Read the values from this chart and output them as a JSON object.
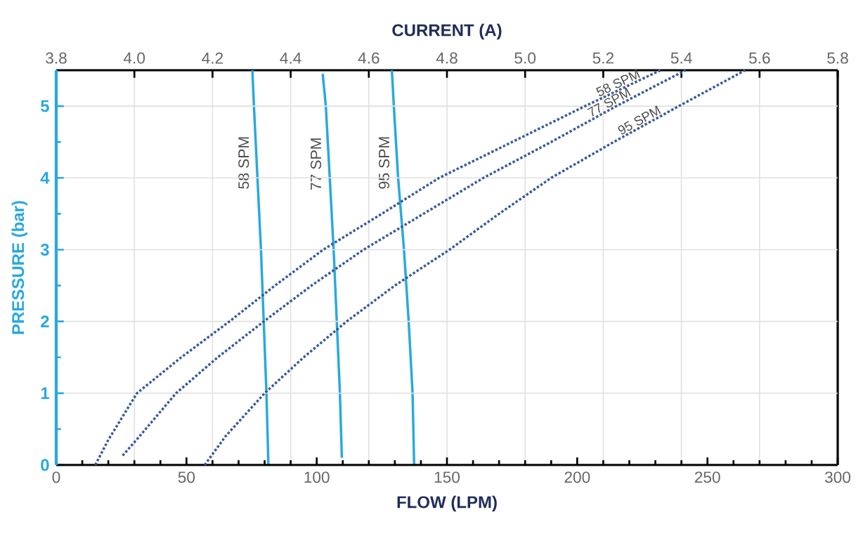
{
  "chart_data": {
    "type": "line",
    "xlabel": "FLOW (LPM)",
    "ylabel": "PRESSURE (bar)",
    "x2label": "CURRENT (A)",
    "xlim": [
      0,
      300
    ],
    "xticks": [
      0,
      50,
      100,
      150,
      200,
      250,
      300
    ],
    "x2lim": [
      3.8,
      5.8
    ],
    "x2ticks": [
      3.8,
      {
        "value": 4,
        "label": "4.0"
      },
      4.2,
      4.4,
      4.6,
      4.8,
      {
        "value": 5,
        "label": "5.0"
      },
      5.2,
      5.4,
      5.6,
      5.8
    ],
    "ylim": [
      0,
      5.5
    ],
    "yticks": [
      0,
      1,
      2,
      3,
      4,
      5
    ],
    "grid": true,
    "marker": "none",
    "series": [
      {
        "name": "58 SPM",
        "axis": "x2",
        "color": "#29a8e0",
        "line_style": "solid",
        "x": [
          4.343,
          4.338,
          4.331,
          4.324,
          4.315,
          4.306,
          4.302
        ],
        "values": [
          0,
          1,
          2,
          3,
          4,
          5,
          5.5
        ]
      },
      {
        "name": "77 SPM",
        "axis": "x2",
        "color": "#29a8e0",
        "line_style": "solid",
        "x": [
          4.531,
          4.526,
          4.518,
          4.51,
          4.5,
          4.49,
          4.482
        ],
        "values": [
          0.1,
          1,
          2,
          3,
          4,
          5,
          5.45
        ]
      },
      {
        "name": "95 SPM",
        "axis": "x2",
        "color": "#29a8e0",
        "line_style": "solid",
        "x": [
          4.716,
          4.712,
          4.702,
          4.69,
          4.675,
          4.664,
          4.659
        ],
        "values": [
          0,
          1,
          2,
          3,
          4,
          5,
          5.5
        ]
      },
      {
        "name": "58 SPM",
        "color": "#3a5a9a",
        "line_style": "dotted",
        "x": [
          15,
          20,
          31,
          48,
          66.5,
          84,
          102.5,
          125,
          147,
          175,
          203,
          232
        ],
        "values": [
          0,
          0.35,
          1,
          1.5,
          2,
          2.5,
          3,
          3.5,
          4,
          4.5,
          5,
          5.5
        ]
      },
      {
        "name": "77 SPM",
        "color": "#3a5a9a",
        "line_style": "dotted",
        "x": [
          25.5,
          32,
          46,
          62,
          79.7,
          98,
          118,
          141,
          164,
          190,
          215,
          241.6
        ],
        "values": [
          0.13,
          0.4,
          1,
          1.5,
          2,
          2.5,
          3,
          3.5,
          4,
          4.5,
          5,
          5.5
        ]
      },
      {
        "name": "95 SPM",
        "color": "#3a5a9a",
        "line_style": "dotted",
        "x": [
          57,
          65,
          80,
          95,
          111.5,
          130,
          151,
          170,
          190,
          214,
          239,
          264.5
        ],
        "values": [
          0,
          0.4,
          1,
          1.5,
          2,
          2.5,
          3,
          3.5,
          4,
          4.5,
          5,
          5.5
        ]
      }
    ]
  }
}
